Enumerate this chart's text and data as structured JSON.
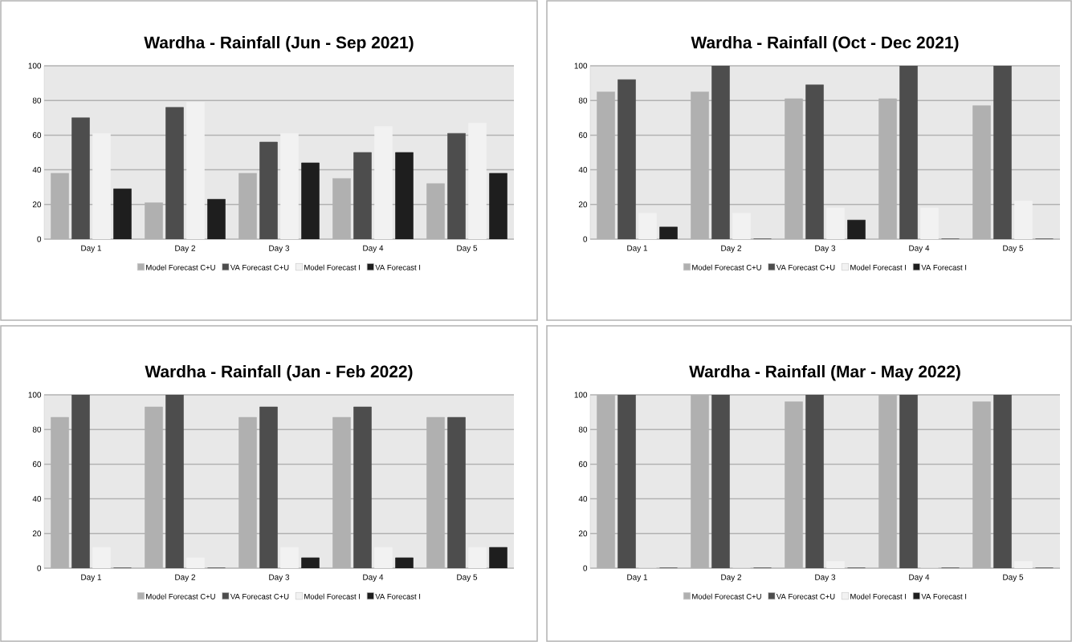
{
  "chart_data": [
    {
      "type": "bar",
      "title": "Wardha - Rainfall (Jun - Sep 2021)",
      "categories": [
        "Day 1",
        "Day 2",
        "Day 3",
        "Day 4",
        "Day 5"
      ],
      "ylim": [
        0,
        100
      ],
      "yticks": [
        0,
        20,
        40,
        60,
        80,
        100
      ],
      "grid": "y",
      "legend": "bottom",
      "series": [
        {
          "name": "Model Forecast C+U",
          "color": "#b0b0b0",
          "values": [
            38,
            21,
            38,
            35,
            32
          ]
        },
        {
          "name": "VA Forecast C+U",
          "color": "#4d4d4d",
          "values": [
            70,
            76,
            56,
            50,
            61
          ]
        },
        {
          "name": "Model Forecast I",
          "color": "#f2f2f2",
          "values": [
            61,
            79,
            61,
            65,
            67
          ]
        },
        {
          "name": "VA Forecast I",
          "color": "#1e1e1e",
          "values": [
            29,
            23,
            44,
            50,
            38
          ]
        }
      ]
    },
    {
      "type": "bar",
      "title": "Wardha - Rainfall (Oct - Dec 2021)",
      "categories": [
        "Day 1",
        "Day 2",
        "Day 3",
        "Day 4",
        "Day 5"
      ],
      "ylim": [
        0,
        100
      ],
      "yticks": [
        0,
        20,
        40,
        60,
        80,
        100
      ],
      "grid": "y",
      "legend": "bottom",
      "series": [
        {
          "name": "Model Forecast C+U",
          "color": "#b0b0b0",
          "values": [
            85,
            85,
            81,
            81,
            77
          ]
        },
        {
          "name": "VA Forecast C+U",
          "color": "#4d4d4d",
          "values": [
            92,
            100,
            89,
            100,
            100
          ]
        },
        {
          "name": "Model Forecast I",
          "color": "#f2f2f2",
          "values": [
            15,
            15,
            18,
            18,
            22
          ]
        },
        {
          "name": "VA Forecast I",
          "color": "#1e1e1e",
          "values": [
            7,
            0,
            11,
            0,
            0
          ]
        }
      ]
    },
    {
      "type": "bar",
      "title": "Wardha - Rainfall (Jan - Feb 2022)",
      "categories": [
        "Day 1",
        "Day 2",
        "Day 3",
        "Day 4",
        "Day 5"
      ],
      "ylim": [
        0,
        100
      ],
      "yticks": [
        0,
        20,
        40,
        60,
        80,
        100
      ],
      "grid": "y",
      "legend": "bottom",
      "series": [
        {
          "name": "Model Forecast C+U",
          "color": "#b0b0b0",
          "values": [
            87,
            93,
            87,
            87,
            87
          ]
        },
        {
          "name": "VA Forecast C+U",
          "color": "#4d4d4d",
          "values": [
            100,
            100,
            93,
            93,
            87
          ]
        },
        {
          "name": "Model Forecast I",
          "color": "#f2f2f2",
          "values": [
            12,
            6,
            12,
            12,
            12
          ]
        },
        {
          "name": "VA Forecast I",
          "color": "#1e1e1e",
          "values": [
            0,
            0,
            6,
            6,
            12
          ]
        }
      ]
    },
    {
      "type": "bar",
      "title": "Wardha - Rainfall (Mar - May 2022)",
      "categories": [
        "Day 1",
        "Day 2",
        "Day 3",
        "Day 4",
        "Day 5"
      ],
      "ylim": [
        0,
        100
      ],
      "yticks": [
        0,
        20,
        40,
        60,
        80,
        100
      ],
      "grid": "y",
      "legend": "bottom",
      "series": [
        {
          "name": "Model Forecast C+U",
          "color": "#b0b0b0",
          "values": [
            100,
            100,
            96,
            100,
            96
          ]
        },
        {
          "name": "VA Forecast C+U",
          "color": "#4d4d4d",
          "values": [
            100,
            100,
            100,
            100,
            100
          ]
        },
        {
          "name": "Model Forecast I",
          "color": "#f2f2f2",
          "values": [
            0,
            0,
            4,
            0,
            4
          ]
        },
        {
          "name": "VA Forecast I",
          "color": "#1e1e1e",
          "values": [
            0,
            0,
            0,
            0,
            0
          ]
        }
      ]
    }
  ]
}
